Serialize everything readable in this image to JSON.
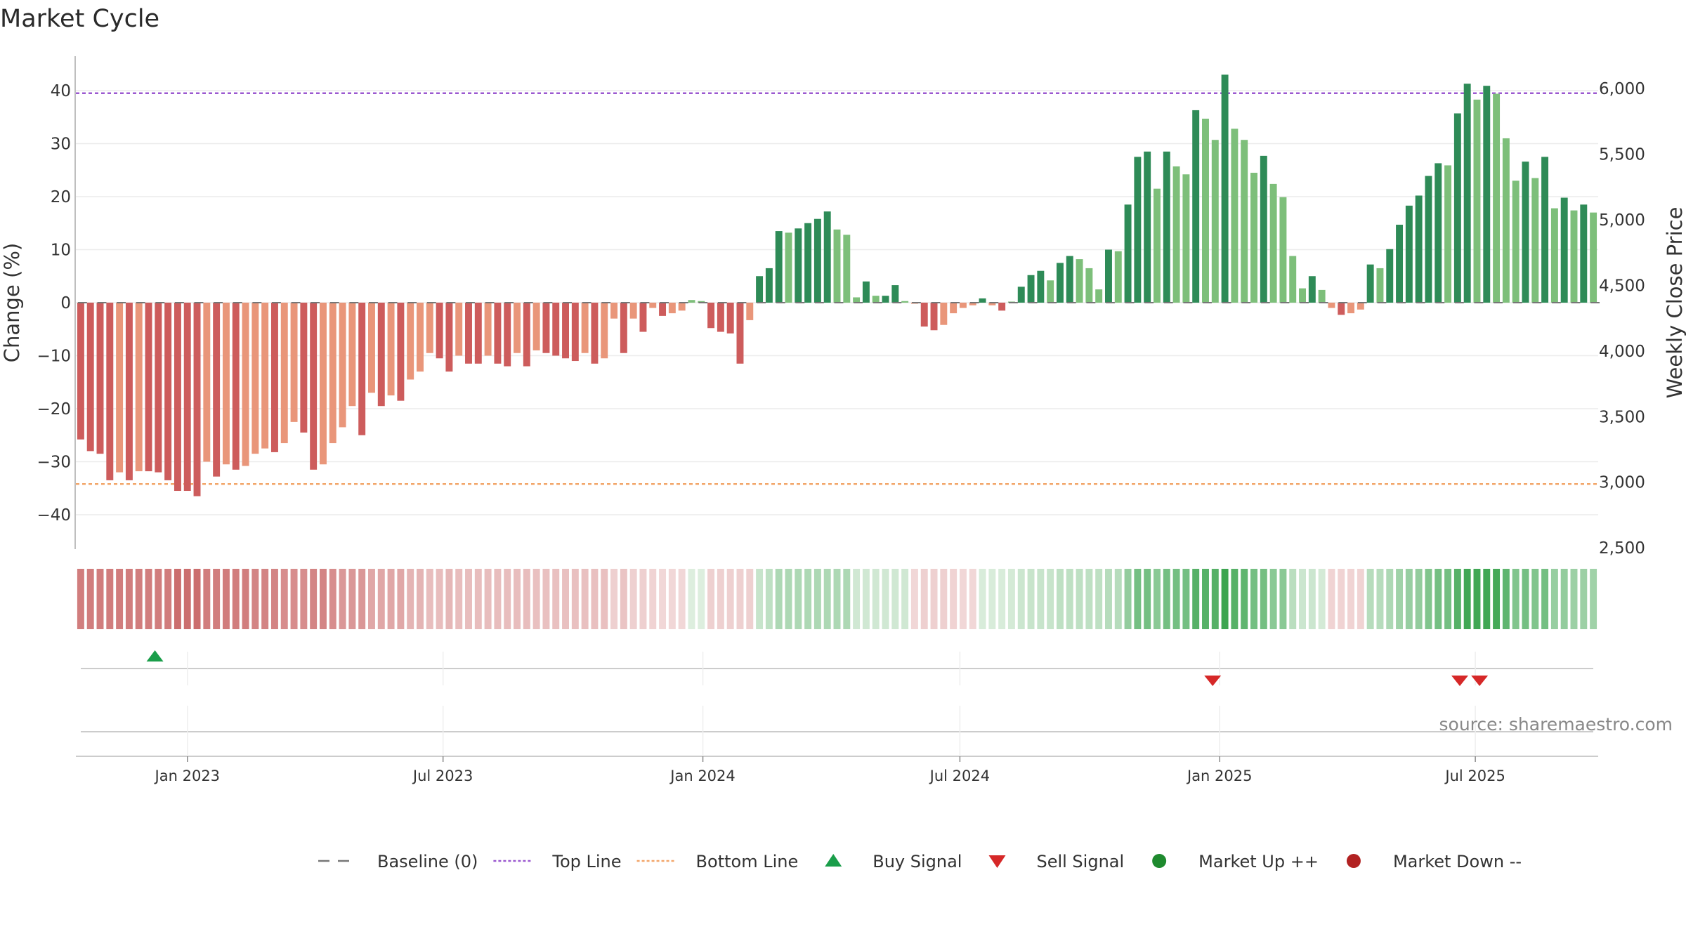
{
  "chart_data": {
    "type": "bar",
    "title": "Market Cycle",
    "ylabel": "Change (%)",
    "y2label": "Weekly Close Price",
    "ylim": [
      -46,
      47
    ],
    "y_ticks": [
      40,
      30,
      20,
      10,
      0,
      -10,
      -20,
      -30,
      -40
    ],
    "y_tick_labels": [
      "40",
      "30",
      "20",
      "10",
      "0",
      "−10",
      "−20",
      "−30",
      "−40"
    ],
    "y2lim": [
      2500,
      6200
    ],
    "y2_ticks": [
      6000,
      5500,
      5000,
      4500,
      4000,
      3500,
      3000,
      2500
    ],
    "y2_tick_labels": [
      "6,000",
      "5,500",
      "5,000",
      "4,500",
      "4,000",
      "3,500",
      "3,000",
      "2,500"
    ],
    "top_line": 39.5,
    "bottom_line": -34.2,
    "x_start": "2022-10-14",
    "x_end": "2025-09-26",
    "x_ticks": [
      "2023-01-01",
      "2023-07-01",
      "2024-01-01",
      "2024-07-01",
      "2025-01-01",
      "2025-07-01"
    ],
    "x_tick_labels": [
      "Jan 2023",
      "Jul 2023",
      "Jan 2024",
      "Jul 2024",
      "Jan 2025",
      "Jul 2025"
    ],
    "values": [
      -25.8,
      -28,
      -28.5,
      -33.5,
      -32,
      -33.5,
      -31.8,
      -31.8,
      -32,
      -33.5,
      -35.5,
      -35.5,
      -36.5,
      -30,
      -32.8,
      -30.5,
      -31.5,
      -30.8,
      -28.5,
      -27.5,
      -28.2,
      -26.5,
      -22.5,
      -24.5,
      -31.5,
      -30.5,
      -26.5,
      -23.5,
      -19.5,
      -25,
      -17,
      -19.5,
      -17.5,
      -18.5,
      -14.5,
      -13,
      -9.5,
      -10.5,
      -13,
      -10,
      -11.5,
      -11.5,
      -10,
      -11.5,
      -12,
      -9.5,
      -12,
      -9,
      -9.5,
      -10,
      -10.5,
      -11,
      -9.5,
      -11.5,
      -10.5,
      -3,
      -9.5,
      -3,
      -5.5,
      -1,
      -2.5,
      -2,
      -1.5,
      0.5,
      0.3,
      -4.8,
      -5.5,
      -5.8,
      -11.5,
      -3.3,
      5,
      6.5,
      13.5,
      13.2,
      14,
      15,
      15.8,
      17.2,
      13.8,
      12.8,
      1,
      4,
      1.3,
      1.3,
      3.3,
      0.3,
      -0.2,
      -4.5,
      -5.2,
      -4.2,
      -2,
      -1,
      -0.5,
      0.8,
      -0.5,
      -1.5,
      0.2,
      3,
      5.2,
      6,
      4.2,
      7.5,
      8.8,
      8.2,
      6.5,
      2.5,
      10,
      9.7,
      18.5,
      27.5,
      28.5,
      21.5,
      28.5,
      25.7,
      24.2,
      36.3,
      34.7,
      30.7,
      43,
      32.8,
      30.7,
      24.5,
      27.7,
      22.4,
      19.9,
      8.8,
      2.7,
      5,
      2.4,
      -1,
      -2.3,
      -2,
      -1.3,
      7.2,
      6.5,
      10.1,
      14.7,
      18.3,
      20.2,
      23.9,
      26.3,
      25.9,
      35.7,
      41.3,
      38.3,
      40.9,
      39.4,
      31,
      23,
      26.6,
      23.5,
      27.5,
      17.8,
      19.8,
      17.4,
      18.5,
      17
    ],
    "heat_strip_values": [
      -30,
      -30,
      -30,
      -30,
      -30,
      -30,
      -30,
      -30,
      -30,
      -30,
      -35,
      -35,
      -35,
      -30,
      -30,
      -30,
      -30,
      -30,
      -28,
      -28,
      -28,
      -25,
      -25,
      -25,
      -28,
      -28,
      -25,
      -22,
      -22,
      -22,
      -17,
      -17,
      -17,
      -17,
      -13,
      -13,
      -10,
      -10,
      -12,
      -10,
      -10,
      -10,
      -10,
      -10,
      -10,
      -10,
      -10,
      -9,
      -9,
      -9,
      -9,
      -9,
      -9,
      -9,
      -9,
      -4,
      -8,
      -4,
      -4,
      -3,
      -2,
      -2,
      -2,
      1,
      1,
      -4,
      -4,
      -4,
      -4,
      -4,
      6,
      8,
      12,
      12,
      12,
      12,
      12,
      12,
      12,
      12,
      4,
      4,
      4,
      4,
      4,
      4,
      -2,
      -4,
      -4,
      -4,
      -3,
      -2,
      -2,
      2,
      2,
      2,
      3,
      5,
      6,
      6,
      6,
      8,
      8,
      8,
      8,
      8,
      10,
      10,
      18,
      25,
      25,
      20,
      25,
      25,
      25,
      32,
      32,
      32,
      38,
      32,
      30,
      25,
      25,
      20,
      20,
      9,
      5,
      5,
      3,
      -3,
      -3,
      -3,
      -3,
      10,
      10,
      12,
      15,
      17,
      18,
      22,
      25,
      25,
      32,
      37,
      37,
      37,
      36,
      30,
      22,
      25,
      22,
      25,
      17,
      18,
      16,
      16,
      15
    ],
    "signals": [
      {
        "type": "buy",
        "date": "2022-12-09"
      },
      {
        "type": "sell",
        "date": "2024-12-27"
      },
      {
        "type": "sell",
        "date": "2025-06-20"
      },
      {
        "type": "sell",
        "date": "2025-07-04"
      }
    ],
    "legend_placement": "bottom-center",
    "legend": [
      {
        "label": "Baseline (0)",
        "marker": "dash-line",
        "color": "#777777"
      },
      {
        "label": "Top Line",
        "marker": "dotted-line",
        "color": "#9b59d0"
      },
      {
        "label": "Bottom Line",
        "marker": "dotted-line",
        "color": "#f2a66a"
      },
      {
        "label": "Buy Signal",
        "marker": "triangle-up",
        "color": "#1a9e4a"
      },
      {
        "label": "Sell Signal",
        "marker": "triangle-down",
        "color": "#d62828"
      },
      {
        "label": "Market Up ++",
        "marker": "circle",
        "color": "#1e8a2e"
      },
      {
        "label": "Market Down --",
        "marker": "circle",
        "color": "#b22222"
      }
    ],
    "source_note": "source: sharemaestro.com",
    "colors": {
      "pos_strong": "#2e8b57",
      "pos_light": "#7dbf7a",
      "neg_strong": "#cd5c5c",
      "neg_light": "#e9967a",
      "top_line": "#9b59d0",
      "bottom_line": "#f2a66a",
      "baseline": "#777777",
      "buy": "#1a9e4a",
      "sell": "#d62828"
    }
  }
}
